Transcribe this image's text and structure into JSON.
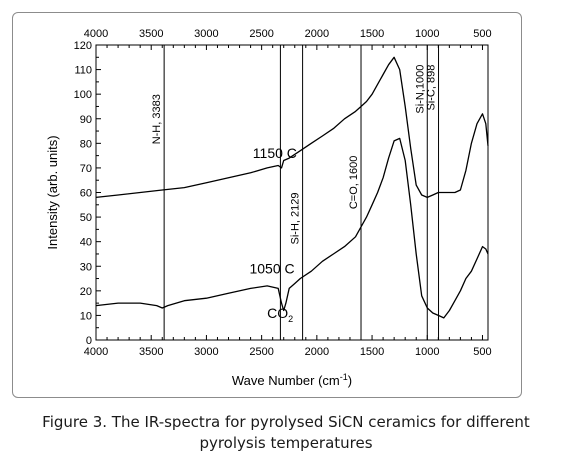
{
  "chart_data": {
    "type": "line",
    "xlabel": "Wave Number (cm",
    "xlabel_sup": "-1",
    "xlabel_tail": ")",
    "ylabel": "Intensity (arb. units)",
    "xlim": [
      4000,
      450
    ],
    "ylim": [
      0,
      120
    ],
    "x_reversed": true,
    "x_ticks": [
      "4000",
      "3500",
      "3000",
      "2500",
      "2000",
      "1500",
      "1000",
      "500"
    ],
    "x_tick_values": [
      4000,
      3500,
      3000,
      2500,
      2000,
      1500,
      1000,
      500
    ],
    "y_ticks": [
      "0",
      "10",
      "20",
      "30",
      "40",
      "50",
      "60",
      "70",
      "80",
      "90",
      "100",
      "110",
      "120"
    ],
    "y_tick_values": [
      0,
      10,
      20,
      30,
      40,
      50,
      60,
      70,
      80,
      90,
      100,
      110,
      120
    ],
    "mirror_top_axis": true,
    "series": [
      {
        "name": "1150 C",
        "x": [
          4000,
          3800,
          3600,
          3400,
          3200,
          3000,
          2800,
          2600,
          2450,
          2350,
          2320,
          2300,
          2250,
          2150,
          2050,
          1950,
          1850,
          1750,
          1650,
          1600,
          1550,
          1500,
          1450,
          1400,
          1350,
          1300,
          1250,
          1200,
          1150,
          1100,
          1050,
          1000,
          950,
          900,
          850,
          800,
          750,
          700,
          650,
          600,
          550,
          500,
          470,
          450
        ],
        "y": [
          58,
          59,
          60,
          61,
          62,
          64,
          66,
          68,
          70,
          71,
          70,
          73,
          74,
          77,
          80,
          83,
          86,
          90,
          93,
          95,
          97,
          100,
          104,
          108,
          112,
          115,
          110,
          95,
          78,
          63,
          59,
          58,
          59,
          60,
          60,
          60,
          60,
          61,
          69,
          80,
          88,
          92,
          88,
          79
        ]
      },
      {
        "name": "1050 C",
        "x": [
          4000,
          3800,
          3600,
          3450,
          3400,
          3350,
          3200,
          3000,
          2800,
          2600,
          2450,
          2350,
          2320,
          2300,
          2280,
          2250,
          2200,
          2150,
          2050,
          1950,
          1850,
          1750,
          1650,
          1600,
          1550,
          1500,
          1450,
          1400,
          1350,
          1300,
          1250,
          1200,
          1150,
          1100,
          1050,
          1000,
          950,
          900,
          850,
          800,
          750,
          700,
          650,
          600,
          550,
          500,
          470,
          450
        ],
        "y": [
          14,
          15,
          15,
          14,
          13,
          14,
          16,
          17,
          19,
          21,
          22,
          21,
          15,
          12,
          15,
          21,
          23,
          25,
          28,
          32,
          35,
          38,
          42,
          46,
          50,
          55,
          60,
          66,
          74,
          81,
          82,
          73,
          55,
          35,
          18,
          13,
          11,
          10,
          9,
          12,
          16,
          20,
          25,
          28,
          33,
          38,
          37,
          35
        ]
      }
    ],
    "vlines": [
      {
        "x": 3383,
        "label": "N-H, 3383"
      },
      {
        "x": 2330,
        "label": ""
      },
      {
        "x": 2129,
        "label": "Si-H, 2129"
      },
      {
        "x": 1600,
        "label": "C=O, 1600"
      },
      {
        "x": 1000,
        "label": "Si-N,1000"
      },
      {
        "x": 898,
        "label": "Si-C, 898"
      }
    ],
    "annotations": [
      {
        "text": "1150 C",
        "x": 2580,
        "y": 74
      },
      {
        "text": "1050 C",
        "x": 2610,
        "y": 27
      },
      {
        "text": "CO",
        "sub": "2",
        "x": 2450,
        "y": 9
      }
    ],
    "grid": false,
    "legend": "none",
    "line_color": "#000000"
  },
  "caption": {
    "line1": "Figure 3. The IR-spectra for pyrolysed SiCN ceramics for different",
    "line2": "pyrolysis temperatures"
  }
}
